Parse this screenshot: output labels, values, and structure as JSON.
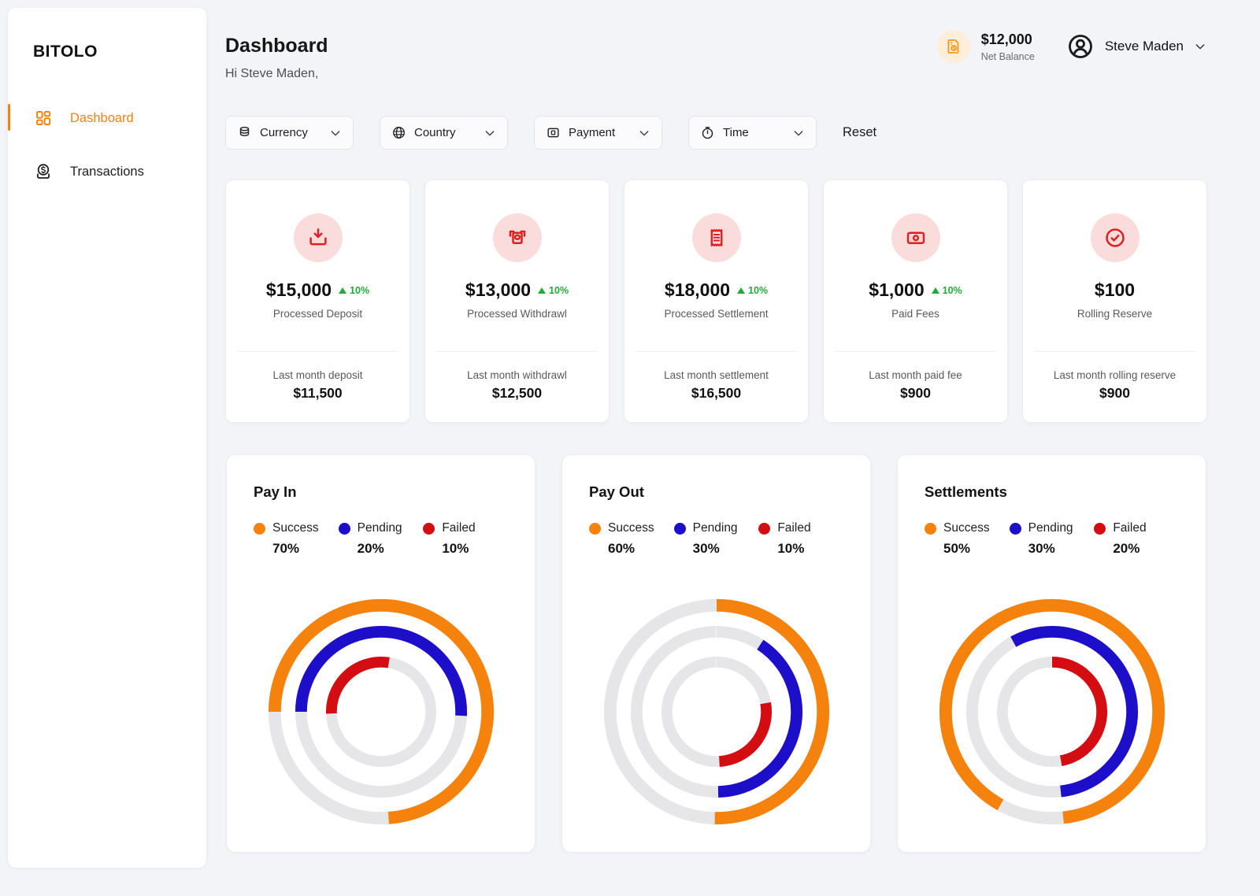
{
  "app": {
    "brand": "BITOLO"
  },
  "colors": {
    "accent_orange": "#f5820d",
    "blue": "#1d0ec9",
    "red": "#d40d12",
    "green": "#23a93c",
    "ring_track": "#e6e6e8",
    "stat_icon_red": "#e01f1f",
    "stat_icon_bg": "#fbdcdc",
    "balance_icon_orange": "#f5930f",
    "balance_icon_bg": "#fdeeda",
    "page_bg": "#f3f4f8"
  },
  "sidebar": {
    "items": [
      {
        "label": "Dashboard",
        "icon": "grid-icon",
        "active": true
      },
      {
        "label": "Transactions",
        "icon": "coin-dollar-icon",
        "active": false
      }
    ]
  },
  "header": {
    "title": "Dashboard",
    "greeting": "Hi Steve Maden,",
    "net_balance": {
      "value": "$12,000",
      "label": "Net Balance",
      "icon": "invoice-dollar-icon"
    },
    "user": {
      "name": "Steve Maden",
      "icon": "user-circle-icon"
    }
  },
  "filters": {
    "buttons": [
      {
        "label": "Currency",
        "icon": "coins-icon"
      },
      {
        "label": "Country",
        "icon": "globe-icon"
      },
      {
        "label": "Payment",
        "icon": "card-icon"
      },
      {
        "label": "Time",
        "icon": "clock-icon"
      }
    ],
    "reset_label": "Reset"
  },
  "stats": [
    {
      "icon": "deposit-icon",
      "value": "$15,000",
      "delta": "10%",
      "label": "Processed Deposit",
      "footer_label": "Last month deposit",
      "footer_value": "$11,500"
    },
    {
      "icon": "withdrawal-icon",
      "value": "$13,000",
      "delta": "10%",
      "label": "Processed Withdrawl",
      "footer_label": "Last month withdrawl",
      "footer_value": "$12,500"
    },
    {
      "icon": "receipt-icon",
      "value": "$18,000",
      "delta": "10%",
      "label": "Processed Settlement",
      "footer_label": "Last month settlement",
      "footer_value": "$16,500"
    },
    {
      "icon": "banknote-icon",
      "value": "$1,000",
      "delta": "10%",
      "label": "Paid Fees",
      "footer_label": "Last month paid fee",
      "footer_value": "$900"
    },
    {
      "icon": "check-circle-icon",
      "value": "$100",
      "delta": null,
      "label": "Rolling Reserve",
      "footer_label": "Last month rolling reserve",
      "footer_value": "$900"
    }
  ],
  "chart_data": [
    {
      "type": "radial-donut",
      "title": "Pay In",
      "legend": [
        {
          "name": "Success",
          "value": 70,
          "display": "70%",
          "color": "#f5820d"
        },
        {
          "name": "Pending",
          "value": 20,
          "display": "20%",
          "color": "#1d0ec9"
        },
        {
          "name": "Failed",
          "value": 10,
          "display": "10%",
          "color": "#d40d12"
        }
      ],
      "rings": [
        {
          "series": "Success",
          "color": "#f5820d",
          "radius": 137,
          "width": 16,
          "start": 270,
          "sweep": 266
        },
        {
          "series": "Pending",
          "color": "#1d0ec9",
          "radius": 103,
          "width": 15,
          "start": 270,
          "sweep": 183
        },
        {
          "series": "Failed",
          "color": "#d40d12",
          "radius": 64,
          "width": 14,
          "start": 268,
          "sweep": 101
        }
      ]
    },
    {
      "type": "radial-donut",
      "title": "Pay Out",
      "legend": [
        {
          "name": "Success",
          "value": 60,
          "display": "60%",
          "color": "#f5820d"
        },
        {
          "name": "Pending",
          "value": 30,
          "display": "30%",
          "color": "#1d0ec9"
        },
        {
          "name": "Failed",
          "value": 10,
          "display": "10%",
          "color": "#d40d12"
        }
      ],
      "rings": [
        {
          "series": "Success",
          "color": "#f5820d",
          "radius": 137,
          "width": 16,
          "start": 0,
          "sweep": 181
        },
        {
          "series": "Pending",
          "color": "#1d0ec9",
          "radius": 103,
          "width": 15,
          "start": 33,
          "sweep": 146
        },
        {
          "series": "Failed",
          "color": "#d40d12",
          "radius": 64,
          "width": 14,
          "start": 80,
          "sweep": 97
        }
      ]
    },
    {
      "type": "radial-donut",
      "title": "Settlements",
      "legend": [
        {
          "name": "Success",
          "value": 50,
          "display": "50%",
          "color": "#f5820d"
        },
        {
          "name": "Pending",
          "value": 30,
          "display": "30%",
          "color": "#1d0ec9"
        },
        {
          "name": "Failed",
          "value": 20,
          "display": "20%",
          "color": "#d40d12"
        }
      ],
      "rings": [
        {
          "series": "Success",
          "color": "#f5820d",
          "radius": 137,
          "width": 16,
          "start": 209,
          "sweep": 325
        },
        {
          "series": "Pending",
          "color": "#1d0ec9",
          "radius": 103,
          "width": 15,
          "start": 331,
          "sweep": 203
        },
        {
          "series": "Failed",
          "color": "#d40d12",
          "radius": 64,
          "width": 14,
          "start": 0,
          "sweep": 170
        }
      ]
    }
  ]
}
